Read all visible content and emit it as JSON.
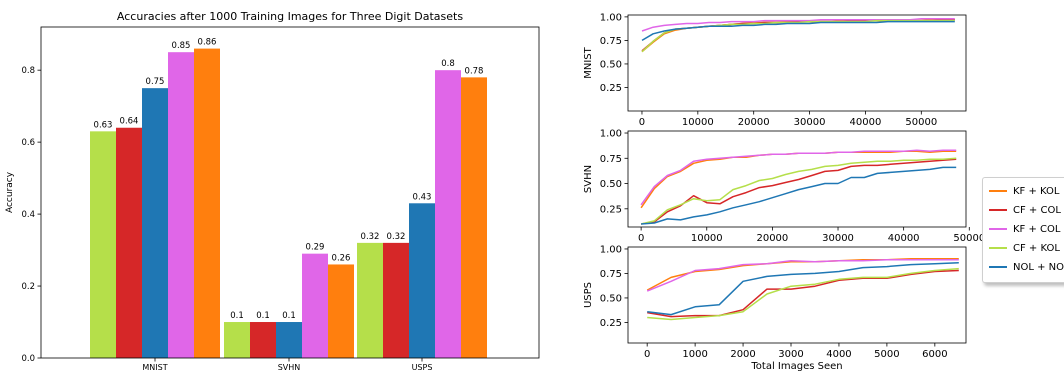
{
  "chart_data": [
    {
      "type": "bar",
      "title": "Accuracies after 1000 Training Images for Three Digit Datasets",
      "xlabel": "",
      "ylabel": "Accuracy",
      "ylim": [
        0,
        0.92
      ],
      "yticks": [
        "0.0",
        "0.2",
        "0.4",
        "0.6",
        "0.8"
      ],
      "ytick_values": [
        0,
        0.2,
        0.4,
        0.6,
        0.8
      ],
      "grid": false,
      "categories": [
        "MNIST",
        "SVHN",
        "USPS"
      ],
      "series": [
        {
          "color": "#b5df4a",
          "values": [
            0.63,
            0.1,
            0.32
          ],
          "labels": [
            "0.63",
            "0.1",
            "0.32"
          ]
        },
        {
          "color": "#d62728",
          "values": [
            0.64,
            0.1,
            0.32
          ],
          "labels": [
            "0.64",
            "0.1",
            "0.32"
          ]
        },
        {
          "color": "#1f77b4",
          "values": [
            0.75,
            0.1,
            0.43
          ],
          "labels": [
            "0.75",
            "0.1",
            "0.43"
          ]
        },
        {
          "color": "#e066e8",
          "values": [
            0.85,
            0.29,
            0.8
          ],
          "labels": [
            "0.85",
            "0.29",
            "0.8"
          ]
        },
        {
          "color": "#ff7f0e",
          "values": [
            0.86,
            0.26,
            0.78
          ],
          "labels": [
            "0.86",
            "0.26",
            "0.78"
          ]
        }
      ]
    },
    {
      "type": "line",
      "title": "",
      "xlabel": "",
      "ylabel": "MNIST",
      "xlim": [
        -2500,
        58000
      ],
      "ylim": [
        0.0,
        1.02
      ],
      "xticks": [
        0,
        10000,
        20000,
        30000,
        40000,
        50000
      ],
      "xtick_labels": [
        "0",
        "10000",
        "20000",
        "30000",
        "40000",
        "50000"
      ],
      "yticks": [
        0.25,
        0.5,
        0.75,
        1.0
      ],
      "ytick_labels": [
        "0.25",
        "0.50",
        "0.75",
        "1.00"
      ],
      "x": [
        0,
        2000,
        4000,
        6000,
        8000,
        10000,
        12000,
        14000,
        16000,
        18000,
        20000,
        22000,
        24000,
        26000,
        28000,
        30000,
        32000,
        34000,
        36000,
        38000,
        40000,
        42000,
        44000,
        46000,
        48000,
        50000,
        52000,
        54000,
        56000
      ],
      "series": [
        {
          "color": "#ff7f0e",
          "values": [
            0.63,
            0.73,
            0.82,
            0.86,
            0.88,
            0.89,
            0.9,
            0.91,
            0.92,
            0.93,
            0.94,
            0.94,
            0.94,
            0.95,
            0.95,
            0.95,
            0.95,
            0.95,
            0.96,
            0.96,
            0.96,
            0.96,
            0.96,
            0.96,
            0.96,
            0.96,
            0.97,
            0.97,
            0.97
          ]
        },
        {
          "color": "#d62728",
          "values": [
            0.64,
            0.74,
            0.83,
            0.87,
            0.88,
            0.89,
            0.9,
            0.91,
            0.92,
            0.93,
            0.93,
            0.94,
            0.94,
            0.94,
            0.95,
            0.95,
            0.95,
            0.95,
            0.95,
            0.96,
            0.96,
            0.96,
            0.96,
            0.96,
            0.96,
            0.96,
            0.96,
            0.97,
            0.97
          ]
        },
        {
          "color": "#e066e8",
          "values": [
            0.85,
            0.89,
            0.91,
            0.92,
            0.93,
            0.93,
            0.94,
            0.94,
            0.95,
            0.95,
            0.95,
            0.96,
            0.96,
            0.96,
            0.96,
            0.96,
            0.97,
            0.97,
            0.97,
            0.97,
            0.97,
            0.97,
            0.97,
            0.97,
            0.97,
            0.98,
            0.98,
            0.98,
            0.98
          ]
        },
        {
          "color": "#b5df4a",
          "values": [
            0.63,
            0.74,
            0.83,
            0.87,
            0.88,
            0.89,
            0.9,
            0.91,
            0.92,
            0.92,
            0.93,
            0.93,
            0.94,
            0.94,
            0.94,
            0.95,
            0.95,
            0.95,
            0.95,
            0.95,
            0.95,
            0.96,
            0.96,
            0.96,
            0.96,
            0.96,
            0.96,
            0.96,
            0.96
          ]
        },
        {
          "color": "#1f77b4",
          "values": [
            0.75,
            0.82,
            0.85,
            0.87,
            0.88,
            0.89,
            0.9,
            0.9,
            0.9,
            0.91,
            0.91,
            0.92,
            0.92,
            0.93,
            0.93,
            0.93,
            0.94,
            0.94,
            0.94,
            0.94,
            0.94,
            0.94,
            0.95,
            0.95,
            0.95,
            0.95,
            0.95,
            0.95,
            0.95
          ]
        }
      ]
    },
    {
      "type": "line",
      "title": "",
      "xlabel": "",
      "ylabel": "SVHN",
      "xlim": [
        -2000,
        49500
      ],
      "ylim": [
        0.07,
        1.02
      ],
      "xticks": [
        0,
        10000,
        20000,
        30000,
        40000,
        50000
      ],
      "xtick_labels": [
        "0",
        "10000",
        "20000",
        "30000",
        "40000",
        "50000"
      ],
      "yticks": [
        0.25,
        0.5,
        0.75,
        1.0
      ],
      "ytick_labels": [
        "0.25",
        "0.50",
        "0.75",
        "1.00"
      ],
      "x": [
        0,
        2000,
        4000,
        6000,
        8000,
        10000,
        12000,
        14000,
        16000,
        18000,
        20000,
        22000,
        24000,
        26000,
        28000,
        30000,
        32000,
        34000,
        36000,
        38000,
        40000,
        42000,
        44000,
        46000,
        48000
      ],
      "series": [
        {
          "color": "#ff7f0e",
          "values": [
            0.26,
            0.45,
            0.57,
            0.62,
            0.7,
            0.73,
            0.74,
            0.76,
            0.76,
            0.78,
            0.79,
            0.79,
            0.8,
            0.8,
            0.8,
            0.81,
            0.81,
            0.81,
            0.81,
            0.81,
            0.82,
            0.82,
            0.81,
            0.82,
            0.82
          ]
        },
        {
          "color": "#d62728",
          "values": [
            0.1,
            0.12,
            0.22,
            0.28,
            0.38,
            0.31,
            0.3,
            0.37,
            0.41,
            0.46,
            0.48,
            0.51,
            0.54,
            0.58,
            0.62,
            0.63,
            0.67,
            0.68,
            0.68,
            0.69,
            0.7,
            0.71,
            0.72,
            0.73,
            0.74
          ]
        },
        {
          "color": "#e066e8",
          "values": [
            0.29,
            0.47,
            0.58,
            0.63,
            0.72,
            0.74,
            0.75,
            0.76,
            0.77,
            0.78,
            0.79,
            0.79,
            0.8,
            0.8,
            0.8,
            0.81,
            0.81,
            0.82,
            0.82,
            0.82,
            0.82,
            0.83,
            0.82,
            0.83,
            0.83
          ]
        },
        {
          "color": "#b5df4a",
          "values": [
            0.1,
            0.13,
            0.24,
            0.29,
            0.35,
            0.33,
            0.34,
            0.44,
            0.48,
            0.53,
            0.55,
            0.59,
            0.62,
            0.64,
            0.67,
            0.68,
            0.7,
            0.71,
            0.72,
            0.72,
            0.73,
            0.73,
            0.74,
            0.74,
            0.75
          ]
        },
        {
          "color": "#1f77b4",
          "values": [
            0.1,
            0.11,
            0.15,
            0.14,
            0.17,
            0.19,
            0.22,
            0.26,
            0.29,
            0.32,
            0.36,
            0.4,
            0.44,
            0.47,
            0.5,
            0.5,
            0.56,
            0.56,
            0.6,
            0.61,
            0.62,
            0.63,
            0.64,
            0.66,
            0.66
          ]
        }
      ]
    },
    {
      "type": "line",
      "title": "",
      "xlabel": "Total Images Seen",
      "ylabel": "USPS",
      "xlim": [
        -400,
        6650
      ],
      "ylim": [
        0.04,
        1.02
      ],
      "xticks": [
        0,
        1000,
        2000,
        3000,
        4000,
        5000,
        6000
      ],
      "xtick_labels": [
        "0",
        "1000",
        "2000",
        "3000",
        "4000",
        "5000",
        "6000"
      ],
      "yticks": [
        0.25,
        0.5,
        0.75,
        1.0
      ],
      "ytick_labels": [
        "0.25",
        "0.50",
        "0.75",
        "1.00"
      ],
      "x": [
        0,
        500,
        1000,
        1500,
        2000,
        2500,
        3000,
        3500,
        4000,
        4500,
        5000,
        5500,
        6000,
        6500
      ],
      "series": [
        {
          "color": "#ff7f0e",
          "values": [
            0.58,
            0.71,
            0.77,
            0.79,
            0.83,
            0.85,
            0.87,
            0.87,
            0.88,
            0.89,
            0.89,
            0.9,
            0.9,
            0.9
          ]
        },
        {
          "color": "#d62728",
          "values": [
            0.35,
            0.31,
            0.32,
            0.32,
            0.38,
            0.59,
            0.59,
            0.62,
            0.68,
            0.7,
            0.7,
            0.74,
            0.77,
            0.78
          ]
        },
        {
          "color": "#e066e8",
          "values": [
            0.57,
            0.67,
            0.78,
            0.8,
            0.84,
            0.85,
            0.88,
            0.87,
            0.88,
            0.88,
            0.89,
            0.89,
            0.89,
            0.89
          ]
        },
        {
          "color": "#b5df4a",
          "values": [
            0.3,
            0.28,
            0.3,
            0.32,
            0.36,
            0.54,
            0.62,
            0.64,
            0.69,
            0.71,
            0.71,
            0.75,
            0.78,
            0.8
          ]
        },
        {
          "color": "#1f77b4",
          "values": [
            0.36,
            0.33,
            0.41,
            0.43,
            0.67,
            0.72,
            0.74,
            0.75,
            0.77,
            0.81,
            0.82,
            0.84,
            0.85,
            0.86
          ]
        }
      ]
    }
  ],
  "legend": {
    "placement": "right",
    "items": [
      {
        "label": "KF + KOL",
        "color": "#ff7f0e"
      },
      {
        "label": "CF + COL",
        "color": "#d62728"
      },
      {
        "label": "KF + COL",
        "color": "#e066e8"
      },
      {
        "label": "CF + KOL",
        "color": "#b5df4a"
      },
      {
        "label": "NOL + NO",
        "color": "#1f77b4"
      }
    ]
  }
}
